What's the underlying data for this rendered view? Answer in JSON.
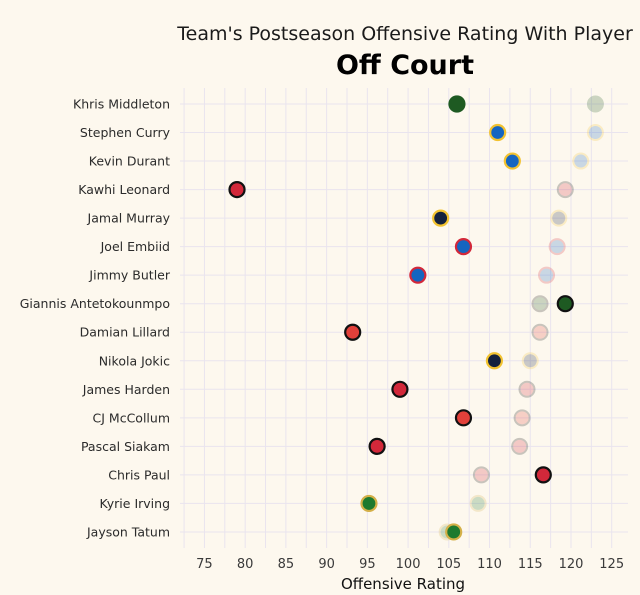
{
  "chart_data": {
    "type": "scatter",
    "title": "Team's Postseason Offensive Rating With Player",
    "subtitle": "Off Court",
    "xlabel": "Offensive Rating",
    "ylabel": "",
    "xlim": [
      72,
      127
    ],
    "xticks": [
      75,
      80,
      85,
      90,
      95,
      100,
      105,
      110,
      115,
      120,
      125
    ],
    "grid": true,
    "legend": "none",
    "players": [
      {
        "name": "Khris Middleton",
        "off": 106.0,
        "on": 123.0,
        "fill": "#1e5a22",
        "stroke": "#1e5a22"
      },
      {
        "name": "Stephen Curry",
        "off": 111.0,
        "on": 123.0,
        "fill": "#1565c0",
        "stroke": "#f2c230"
      },
      {
        "name": "Kevin Durant",
        "off": 112.8,
        "on": 121.2,
        "fill": "#1565c0",
        "stroke": "#f2c230"
      },
      {
        "name": "Kawhi Leonard",
        "off": 79.0,
        "on": 119.3,
        "fill": "#d2283a",
        "stroke": "#111111"
      },
      {
        "name": "Jamal Murray",
        "off": 104.0,
        "on": 118.5,
        "fill": "#14213d",
        "stroke": "#f2c230"
      },
      {
        "name": "Joel Embiid",
        "off": 106.8,
        "on": 118.3,
        "fill": "#1565c0",
        "stroke": "#d2283a"
      },
      {
        "name": "Jimmy Butler",
        "off": 101.2,
        "on": 117.0,
        "fill": "#1565c0",
        "stroke": "#d2283a"
      },
      {
        "name": "Giannis Antetokounmpo",
        "off": 119.3,
        "on": 116.2,
        "fill": "#1e5a22",
        "stroke": "#111111"
      },
      {
        "name": "Damian Lillard",
        "off": 93.2,
        "on": 116.2,
        "fill": "#e2403a",
        "stroke": "#111111"
      },
      {
        "name": "Nikola Jokic",
        "off": 110.6,
        "on": 115.0,
        "fill": "#14213d",
        "stroke": "#f2c230"
      },
      {
        "name": "James Harden",
        "off": 99.0,
        "on": 114.6,
        "fill": "#d2283a",
        "stroke": "#111111"
      },
      {
        "name": "CJ McCollum",
        "off": 106.8,
        "on": 114.0,
        "fill": "#e2403a",
        "stroke": "#111111"
      },
      {
        "name": "Pascal Siakam",
        "off": 96.2,
        "on": 113.7,
        "fill": "#d2283a",
        "stroke": "#111111"
      },
      {
        "name": "Chris Paul",
        "off": 116.6,
        "on": 109.0,
        "fill": "#d2283a",
        "stroke": "#111111"
      },
      {
        "name": "Kyrie Irving",
        "off": 95.2,
        "on": 108.6,
        "fill": "#1e7a2e",
        "stroke": "#d4b048"
      },
      {
        "name": "Jayson Tatum",
        "off": 105.6,
        "on": 104.8,
        "fill": "#1e7a2e",
        "stroke": "#d4b048"
      }
    ]
  }
}
